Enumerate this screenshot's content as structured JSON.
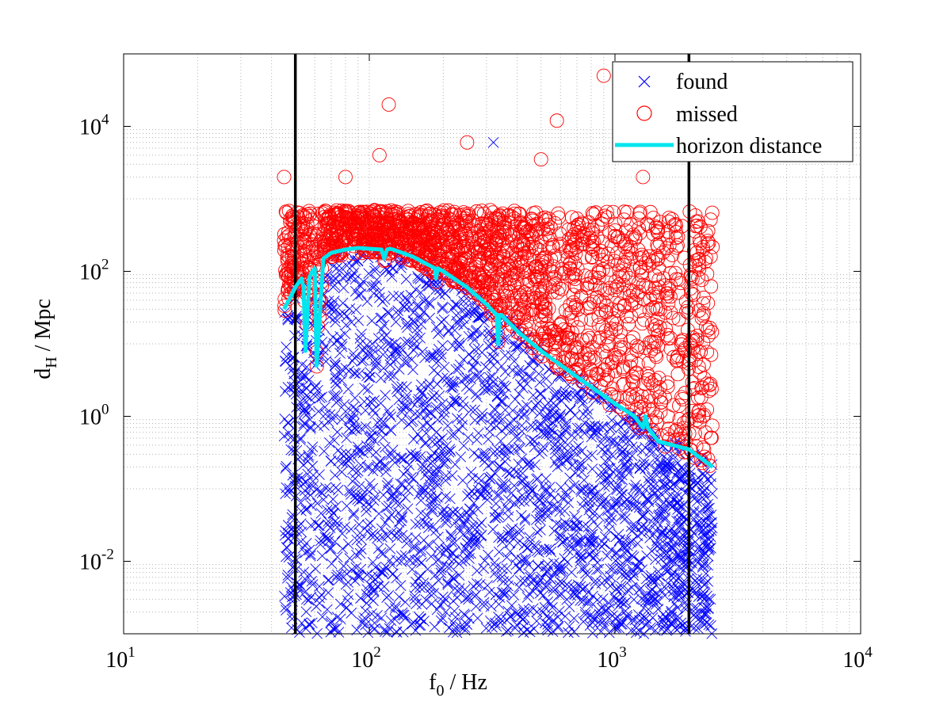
{
  "chart_data": {
    "type": "scatter",
    "title": "",
    "xlabel": {
      "main": "f",
      "sub": "0",
      "rest": " / Hz"
    },
    "ylabel": {
      "main": "d",
      "sub": "H",
      "rest": " / Mpc"
    },
    "xscale": "log",
    "yscale": "log",
    "xlim": [
      10,
      10000
    ],
    "ylim": [
      0.001,
      100000
    ],
    "x_ticks": [
      {
        "base": "10",
        "exp": "1",
        "value": 10
      },
      {
        "base": "10",
        "exp": "2",
        "value": 100
      },
      {
        "base": "10",
        "exp": "3",
        "value": 1000
      },
      {
        "base": "10",
        "exp": "4",
        "value": 10000
      }
    ],
    "y_ticks": [
      {
        "base": "10",
        "exp": "-2",
        "value": 0.01
      },
      {
        "base": "10",
        "exp": "0",
        "value": 1
      },
      {
        "base": "10",
        "exp": "2",
        "value": 100
      },
      {
        "base": "10",
        "exp": "4",
        "value": 10000
      }
    ],
    "grid": "dotted, major and minor",
    "legend_position": "top-right",
    "colors": {
      "found": "#0000ff",
      "missed": "#ff0000",
      "horizon": "#00e5ee",
      "band": "#000000"
    },
    "band_lines_x": [
      50,
      2000
    ],
    "series": [
      {
        "name": "found",
        "marker": "x",
        "description": "injections recovered; dense cloud spanning f0 from about 45 Hz to 2500 Hz, distances from ~0.001 Mpc up to just below the horizon distance",
        "f_range": [
          45,
          2500
        ],
        "d_range": [
          0.001,
          200
        ],
        "outliers": [
          {
            "x": 320,
            "y": 6000
          }
        ]
      },
      {
        "name": "missed",
        "marker": "o",
        "description": "injections not recovered; concentrated above the horizon distance, from ~0.2 Mpc up to ~2000 Mpc, with sparse outliers above",
        "f_range": [
          45,
          2500
        ],
        "d_range": [
          0.2,
          2000
        ],
        "outliers": [
          {
            "x": 120,
            "y": 20000
          },
          {
            "x": 110,
            "y": 4000
          },
          {
            "x": 250,
            "y": 6000
          },
          {
            "x": 580,
            "y": 12000
          },
          {
            "x": 500,
            "y": 3500
          },
          {
            "x": 900,
            "y": 50000
          },
          {
            "x": 45,
            "y": 2000
          },
          {
            "x": 80,
            "y": 2000
          },
          {
            "x": 1300,
            "y": 2000
          }
        ]
      },
      {
        "name": "horizon distance",
        "line": true,
        "x": [
          45,
          47,
          50,
          53,
          54,
          55,
          57,
          58,
          59,
          60,
          61,
          65,
          70,
          80,
          90,
          100,
          112,
          115,
          118,
          121,
          125,
          150,
          185,
          187,
          190,
          200,
          250,
          300,
          330,
          335,
          338,
          345,
          400,
          500,
          700,
          1000,
          1200,
          1300,
          1330,
          1360,
          1500,
          2000,
          2500
        ],
        "y": [
          30,
          40,
          60,
          80,
          60,
          8,
          80,
          95,
          100,
          110,
          5,
          150,
          180,
          200,
          210,
          205,
          200,
          150,
          200,
          205,
          200,
          160,
          110,
          80,
          110,
          100,
          60,
          35,
          25,
          10,
          25,
          25,
          15,
          8,
          3.5,
          1.5,
          1.0,
          0.7,
          1.0,
          0.7,
          0.45,
          0.35,
          0.2
        ]
      }
    ]
  }
}
